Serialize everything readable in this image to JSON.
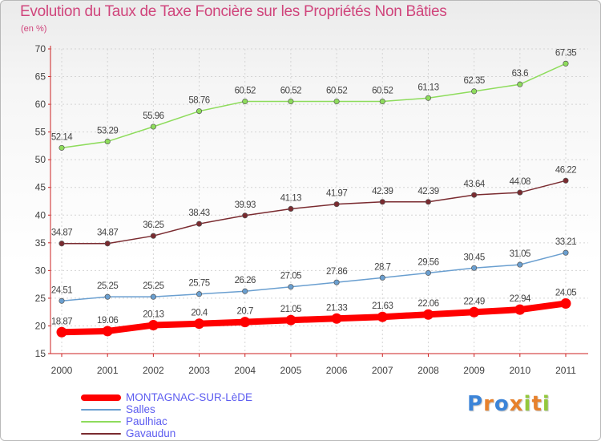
{
  "chart_data": {
    "type": "line",
    "title": "Evolution du Taux de Taxe Foncière sur les Propriétés Non Bâties",
    "ylabel": "(en %)",
    "xlabel": "",
    "categories": [
      "2000",
      "2001",
      "2002",
      "2003",
      "2004",
      "2005",
      "2006",
      "2007",
      "2008",
      "2009",
      "2010",
      "2011"
    ],
    "ylim": [
      15,
      70
    ],
    "yticks": [
      15,
      20,
      25,
      30,
      35,
      40,
      45,
      50,
      55,
      60,
      65,
      70
    ],
    "series": [
      {
        "name": "MONTAGNAC-SUR-LèDE",
        "color": "#ff0000",
        "highlight": true,
        "values": [
          18.87,
          19.06,
          20.13,
          20.4,
          20.7,
          21.05,
          21.33,
          21.63,
          22.06,
          22.49,
          22.94,
          24.05
        ],
        "labels": [
          "18.87",
          "19.06",
          "20.13",
          "20.4",
          "20.7",
          "21.05",
          "21.33",
          "21.63",
          "22.06",
          "22.49",
          "22.94",
          "24.05"
        ]
      },
      {
        "name": "Salles",
        "color": "#6a9fd0",
        "highlight": false,
        "values": [
          24.51,
          25.25,
          25.25,
          25.75,
          26.26,
          27.05,
          27.86,
          28.7,
          29.56,
          30.45,
          31.05,
          33.21
        ],
        "labels": [
          "24.51",
          "25.25",
          "25.25",
          "25.75",
          "26.26",
          "27.05",
          "27.86",
          "28.7",
          "29.56",
          "30.45",
          "31.05",
          "33.21"
        ]
      },
      {
        "name": "Paulhiac",
        "color": "#8edc5c",
        "highlight": false,
        "values": [
          52.14,
          53.29,
          55.96,
          58.76,
          60.52,
          60.52,
          60.52,
          60.52,
          61.13,
          62.35,
          63.6,
          67.35
        ],
        "labels": [
          "52.14",
          "53.29",
          "55.96",
          "58.76",
          "60.52",
          "60.52",
          "60.52",
          "60.52",
          "61.13",
          "62.35",
          "63.6",
          "67.35"
        ]
      },
      {
        "name": "Gavaudun",
        "color": "#7a2b30",
        "highlight": false,
        "values": [
          34.87,
          34.87,
          36.25,
          38.43,
          39.93,
          41.13,
          41.97,
          42.39,
          42.39,
          43.64,
          44.08,
          46.22
        ],
        "labels": [
          "34.87",
          "34.87",
          "36.25",
          "38.43",
          "39.93",
          "41.13",
          "41.97",
          "42.39",
          "42.39",
          "43.64",
          "44.08",
          "46.22"
        ]
      }
    ]
  },
  "brand": {
    "letters": [
      "P",
      "r",
      "o",
      "x",
      "i",
      "t",
      "i"
    ],
    "colors": [
      "#3b84d8",
      "#e7812c",
      "#3b84d8",
      "#e7812c",
      "#93c83c",
      "#e7812c",
      "#93c83c"
    ]
  }
}
